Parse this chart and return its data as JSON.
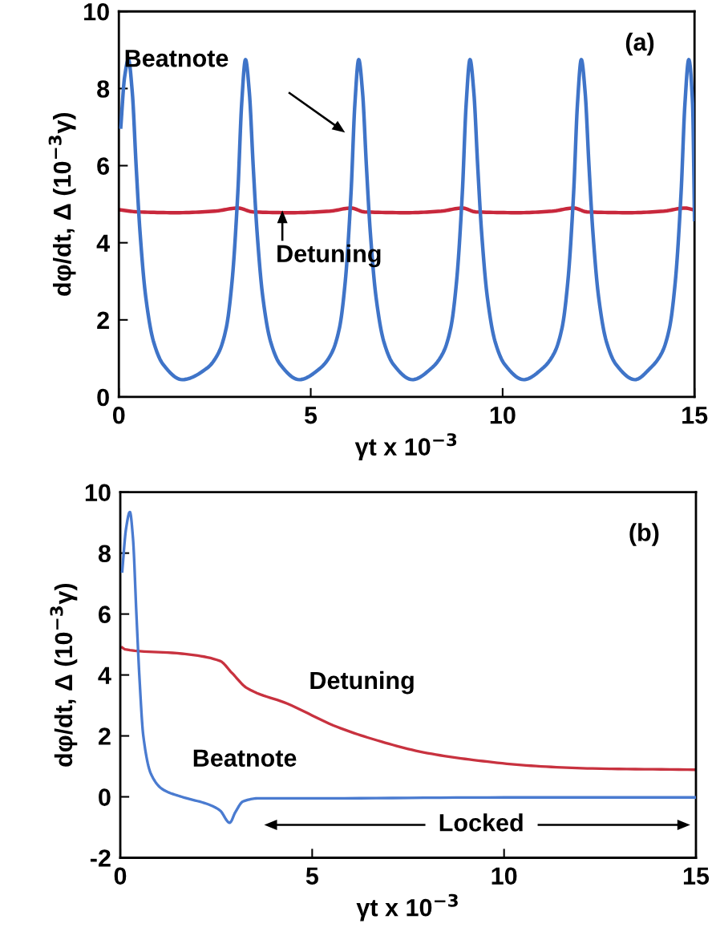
{
  "chart_data": [
    {
      "type": "line",
      "xlabel": "γt x 10$^{−3}$",
      "ylabel": "dφ/dt, Δ (10$^{−3}$γ)",
      "xlim": [
        0,
        15
      ],
      "xticks": [
        0,
        5,
        10,
        15
      ],
      "ylim": [
        0,
        10
      ],
      "yticks": [
        0,
        2,
        4,
        6,
        8,
        10
      ],
      "grid": false,
      "legend": false,
      "marker": "none",
      "line_style": "solid",
      "series": [
        {
          "color": "#3f74c8",
          "x": [
            0.05,
            0.15,
            0.25,
            0.35,
            0.45,
            0.55,
            0.7,
            0.9,
            1.15,
            1.65,
            2.3,
            2.6,
            2.8,
            2.95,
            3.1,
            3.2,
            3.3,
            3.4,
            3.5,
            3.6,
            3.75,
            3.95,
            4.2,
            4.7,
            5.25,
            5.55,
            5.75,
            5.9,
            6.05,
            6.15,
            6.25,
            6.35,
            6.45,
            6.55,
            6.7,
            6.9,
            7.15,
            7.65,
            8.15,
            8.45,
            8.65,
            8.8,
            8.95,
            9.05,
            9.15,
            9.25,
            9.35,
            9.45,
            9.6,
            9.8,
            10.05,
            10.55,
            11.05,
            11.35,
            11.55,
            11.7,
            11.85,
            11.95,
            12.05,
            12.15,
            12.25,
            12.35,
            12.5,
            12.7,
            12.95,
            13.45,
            13.85,
            14.15,
            14.35,
            14.5,
            14.65,
            14.75,
            14.85,
            14.95,
            15.0
          ],
          "values": [
            7.0,
            8.3,
            8.75,
            7.9,
            6.0,
            4.3,
            2.6,
            1.45,
            0.85,
            0.45,
            0.75,
            1.15,
            1.8,
            3.0,
            5.3,
            7.6,
            8.75,
            7.9,
            6.0,
            4.3,
            2.6,
            1.45,
            0.85,
            0.45,
            0.75,
            1.15,
            1.8,
            3.0,
            5.3,
            7.6,
            8.75,
            7.9,
            6.0,
            4.3,
            2.6,
            1.45,
            0.85,
            0.45,
            0.75,
            1.15,
            1.8,
            3.0,
            5.3,
            7.6,
            8.75,
            7.9,
            6.0,
            4.3,
            2.6,
            1.45,
            0.85,
            0.45,
            0.75,
            1.15,
            1.8,
            3.0,
            5.3,
            7.6,
            8.75,
            7.9,
            6.0,
            4.3,
            2.6,
            1.45,
            0.85,
            0.45,
            0.75,
            1.15,
            1.8,
            3.0,
            5.3,
            7.6,
            8.75,
            7.6,
            4.6
          ]
        },
        {
          "color": "#c8283c",
          "x": [
            0.05,
            0.5,
            1.5,
            2.5,
            3.1,
            3.5,
            4.5,
            5.5,
            6.05,
            6.4,
            7.5,
            8.4,
            8.95,
            9.3,
            10.4,
            11.3,
            11.85,
            12.2,
            13.3,
            14.2,
            14.75,
            15.0
          ],
          "values": [
            4.85,
            4.8,
            4.78,
            4.82,
            4.9,
            4.8,
            4.78,
            4.82,
            4.9,
            4.8,
            4.78,
            4.82,
            4.9,
            4.8,
            4.78,
            4.82,
            4.9,
            4.8,
            4.78,
            4.82,
            4.9,
            4.85
          ]
        }
      ],
      "annotations": [
        "Beatnote",
        "Detuning",
        "(a)"
      ]
    },
    {
      "type": "line",
      "xlabel": "γt x 10$^{−3}$",
      "ylabel": "dφ/dt, Δ (10$^{−3}$γ)",
      "xlim": [
        0,
        15
      ],
      "xticks": [
        0,
        5,
        10,
        15
      ],
      "ylim": [
        -2,
        10
      ],
      "yticks": [
        -2,
        0,
        2,
        4,
        6,
        8,
        10
      ],
      "grid": false,
      "legend": false,
      "marker": "none",
      "line_style": "solid",
      "series": [
        {
          "color": "#4a7bd0",
          "x": [
            0.05,
            0.15,
            0.25,
            0.33,
            0.42,
            0.5,
            0.6,
            0.8,
            1.1,
            1.6,
            2.3,
            2.6,
            2.85,
            3.0,
            3.2,
            3.6,
            5,
            10,
            15
          ],
          "values": [
            7.4,
            8.8,
            9.35,
            8.5,
            6.0,
            3.9,
            2.0,
            0.75,
            0.25,
            0.0,
            -0.25,
            -0.45,
            -0.85,
            -0.5,
            -0.15,
            -0.05,
            -0.05,
            -0.02,
            -0.02
          ]
        },
        {
          "color": "#c8323f",
          "x": [
            0.05,
            0.13,
            1.6,
            2.6,
            2.9,
            3.3,
            4.35,
            5.66,
            6.7,
            7.9,
            9.2,
            10.7,
            12.3,
            15
          ],
          "values": [
            4.9,
            4.84,
            4.7,
            4.46,
            4.08,
            3.57,
            3.06,
            2.29,
            1.85,
            1.46,
            1.21,
            1.02,
            0.93,
            0.89
          ]
        }
      ],
      "annotations": [
        "(b)",
        "Detuning",
        "Beatnote",
        "Locked"
      ]
    }
  ]
}
